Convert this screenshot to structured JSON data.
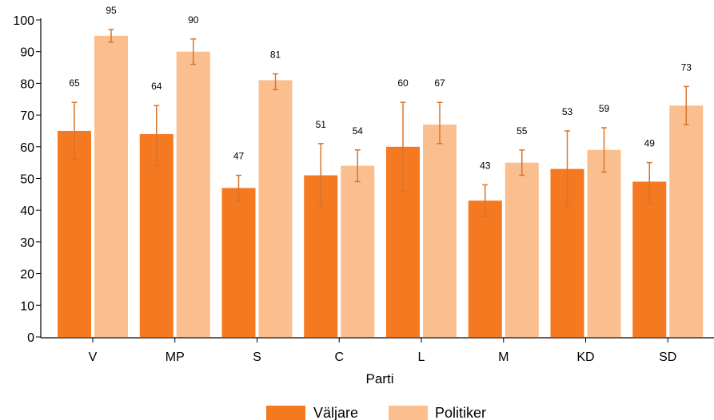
{
  "chart_data": {
    "type": "bar",
    "xlabel": "Parti",
    "ylabel": "",
    "ylim": [
      0,
      100
    ],
    "yticks": [
      0,
      10,
      20,
      30,
      40,
      50,
      60,
      70,
      80,
      90,
      100
    ],
    "categories": [
      "V",
      "MP",
      "S",
      "C",
      "L",
      "M",
      "KD",
      "SD"
    ],
    "series": [
      {
        "name": "Väljare",
        "color": "#f47920",
        "values": [
          65,
          64,
          47,
          51,
          60,
          43,
          53,
          49
        ],
        "labels": [
          "65",
          "64",
          "47",
          "51",
          "60",
          "43",
          "53",
          "49"
        ],
        "error_low": [
          56,
          54,
          43,
          41,
          46,
          38,
          41,
          42
        ],
        "error_high": [
          74,
          73,
          51,
          61,
          74,
          48,
          65,
          55
        ]
      },
      {
        "name": "Politiker",
        "color": "#fbbf8f",
        "values": [
          95,
          90,
          81,
          54,
          67,
          55,
          59,
          73
        ],
        "labels": [
          "95",
          "90",
          "81",
          "54",
          "67",
          "55",
          "59",
          "73"
        ],
        "error_low": [
          93,
          86,
          78,
          49,
          61,
          51,
          52,
          67
        ],
        "error_high": [
          97,
          94,
          83,
          59,
          74,
          59,
          66,
          79
        ]
      }
    ],
    "error_bar_color": "#d9742a",
    "legend_position": "bottom-center",
    "grid": false
  }
}
